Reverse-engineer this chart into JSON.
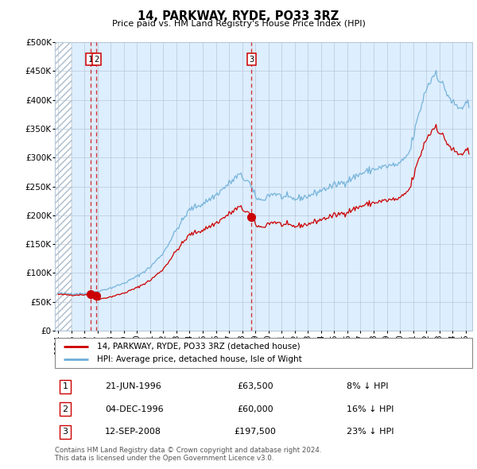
{
  "title": "14, PARKWAY, RYDE, PO33 3RZ",
  "subtitle": "Price paid vs. HM Land Registry's House Price Index (HPI)",
  "hpi_color": "#6baed6",
  "price_color": "#cc0000",
  "marker_color": "#cc0000",
  "bg_color": "#ddeeff",
  "hatch_color": "#c8d8e8",
  "grid_color": "#b8c8d8",
  "dashed_line_color": "#cc0000",
  "dashed_highlight_color": "#dde8f5",
  "legend_label_price": "14, PARKWAY, RYDE, PO33 3RZ (detached house)",
  "legend_label_hpi": "HPI: Average price, detached house, Isle of Wight",
  "ylim": [
    0,
    500000
  ],
  "yticks": [
    0,
    50000,
    100000,
    150000,
    200000,
    250000,
    300000,
    350000,
    400000,
    450000,
    500000
  ],
  "ytick_labels": [
    "£0",
    "£50K",
    "£100K",
    "£150K",
    "£200K",
    "£250K",
    "£300K",
    "£350K",
    "£400K",
    "£450K",
    "£500K"
  ],
  "xlim_left": 1993.75,
  "xlim_right": 2025.5,
  "hatch_end": 1995.0,
  "transactions": [
    {
      "date": 1996.47,
      "price": 63500,
      "label": "1"
    },
    {
      "date": 1996.92,
      "price": 60000,
      "label": "2"
    },
    {
      "date": 2008.71,
      "price": 197500,
      "label": "3"
    }
  ],
  "table_rows": [
    {
      "num": "1",
      "date": "21-JUN-1996",
      "price": "£63,500",
      "hpi_pct": "8% ↓ HPI"
    },
    {
      "num": "2",
      "date": "04-DEC-1996",
      "price": "£60,000",
      "hpi_pct": "16% ↓ HPI"
    },
    {
      "num": "3",
      "date": "12-SEP-2008",
      "price": "£197,500",
      "hpi_pct": "23% ↓ HPI"
    }
  ],
  "footer": "Contains HM Land Registry data © Crown copyright and database right 2024.\nThis data is licensed under the Open Government Licence v3.0."
}
